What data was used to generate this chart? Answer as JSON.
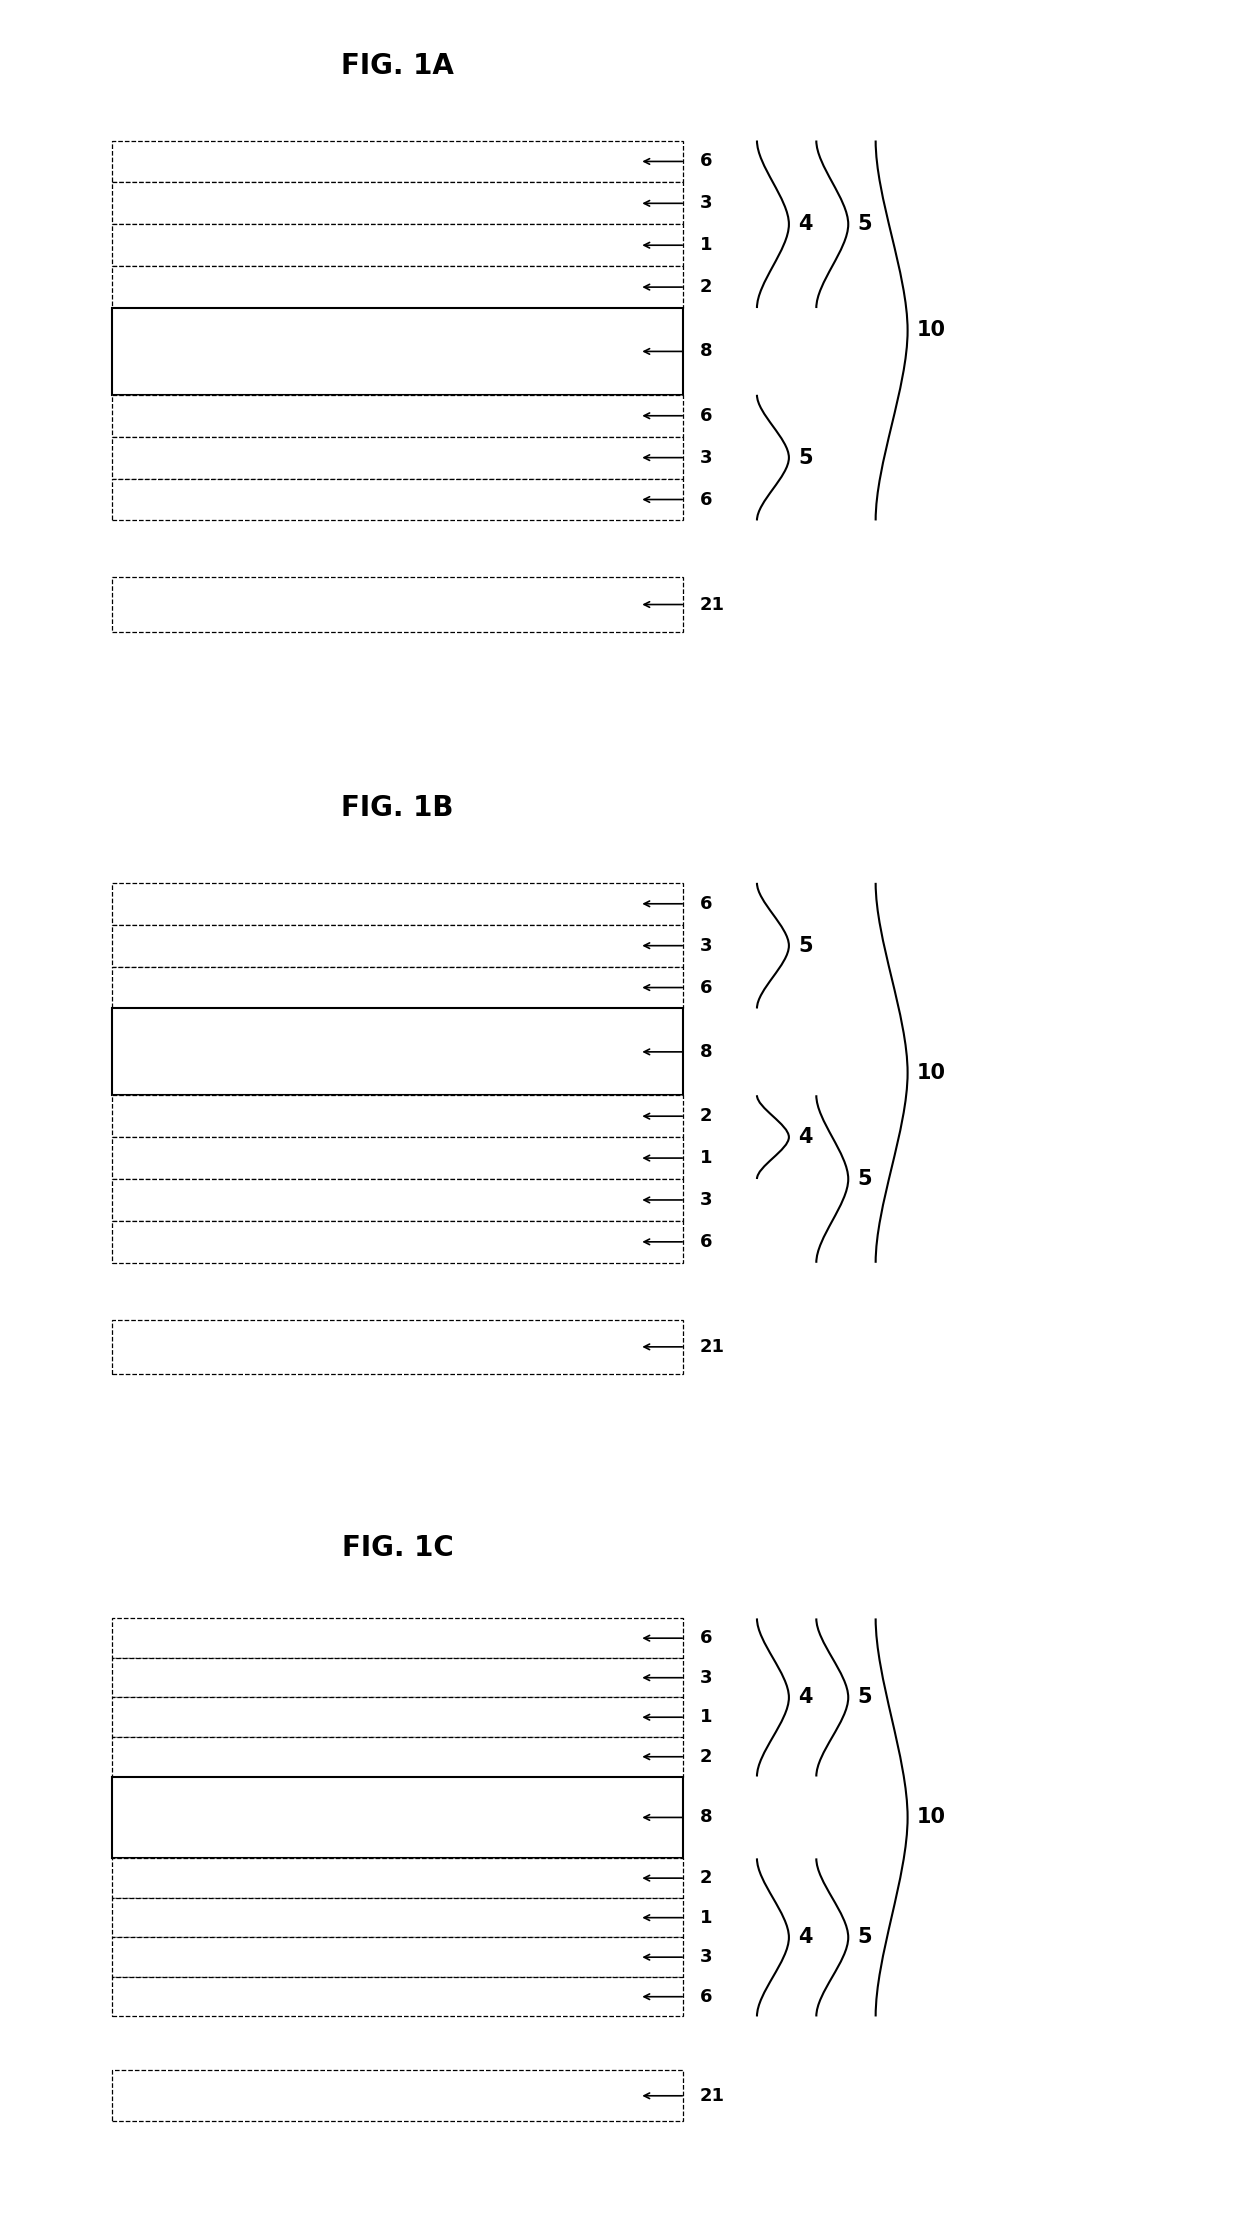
{
  "background_color": "#ffffff",
  "fig_title_fontsize": 20,
  "label_fontsize": 13,
  "brace_label_fontsize": 15,
  "fig1A": {
    "title": "FIG. 1A",
    "layers": [
      {
        "label": "6",
        "thick": false
      },
      {
        "label": "3",
        "thick": false
      },
      {
        "label": "1",
        "thick": false
      },
      {
        "label": "2",
        "thick": false
      },
      {
        "label": "8",
        "thick": true
      },
      {
        "label": "6",
        "thick": false
      },
      {
        "label": "3",
        "thick": false
      },
      {
        "label": "6",
        "thick": false
      }
    ],
    "braces": [
      {
        "start": 0,
        "end": 3,
        "level": 1,
        "label": "4"
      },
      {
        "start": 0,
        "end": 3,
        "level": 2,
        "label": "5"
      },
      {
        "start": 5,
        "end": 7,
        "level": 1,
        "label": "5"
      },
      {
        "start": 0,
        "end": 7,
        "level": 3,
        "label": "10"
      }
    ],
    "substrate_label": "21"
  },
  "fig1B": {
    "title": "FIG. 1B",
    "layers": [
      {
        "label": "6",
        "thick": false
      },
      {
        "label": "3",
        "thick": false
      },
      {
        "label": "6",
        "thick": false
      },
      {
        "label": "8",
        "thick": true
      },
      {
        "label": "2",
        "thick": false
      },
      {
        "label": "1",
        "thick": false
      },
      {
        "label": "3",
        "thick": false
      },
      {
        "label": "6",
        "thick": false
      }
    ],
    "braces": [
      {
        "start": 0,
        "end": 2,
        "level": 1,
        "label": "5"
      },
      {
        "start": 4,
        "end": 5,
        "level": 1,
        "label": "4"
      },
      {
        "start": 4,
        "end": 7,
        "level": 2,
        "label": "5"
      },
      {
        "start": 0,
        "end": 7,
        "level": 3,
        "label": "10"
      }
    ],
    "substrate_label": "21"
  },
  "fig1C": {
    "title": "FIG. 1C",
    "layers": [
      {
        "label": "6",
        "thick": false
      },
      {
        "label": "3",
        "thick": false
      },
      {
        "label": "1",
        "thick": false
      },
      {
        "label": "2",
        "thick": false
      },
      {
        "label": "8",
        "thick": true
      },
      {
        "label": "2",
        "thick": false
      },
      {
        "label": "1",
        "thick": false
      },
      {
        "label": "3",
        "thick": false
      },
      {
        "label": "6",
        "thick": false
      }
    ],
    "braces": [
      {
        "start": 0,
        "end": 3,
        "level": 1,
        "label": "4"
      },
      {
        "start": 0,
        "end": 3,
        "level": 2,
        "label": "5"
      },
      {
        "start": 5,
        "end": 8,
        "level": 1,
        "label": "4"
      },
      {
        "start": 5,
        "end": 8,
        "level": 2,
        "label": "5"
      },
      {
        "start": 0,
        "end": 8,
        "level": 3,
        "label": "10"
      }
    ],
    "substrate_label": "21"
  }
}
